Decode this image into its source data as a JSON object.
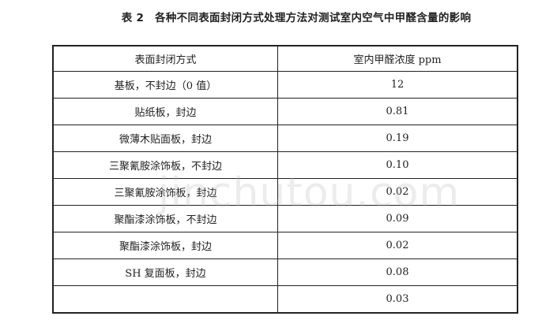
{
  "title": "表 2　各种不同表面封闭方式处理方法对测试室内空气中甲醛含量的影响",
  "table": {
    "headers": [
      "表面封闭方式",
      "室内甲醛浓度 ppm"
    ],
    "rows": [
      [
        "基板，不封边（0 值）",
        "12"
      ],
      [
        "贴纸板，封边",
        "0.81"
      ],
      [
        "微薄木贴面板，封边",
        "0.19"
      ],
      [
        "三聚氰胺涂饰板，不封边",
        "0.10"
      ],
      [
        "三聚氰胺涂饰板，封边",
        "0.02"
      ],
      [
        "聚酯漆涂饰板，不封边",
        "0.09"
      ],
      [
        "聚酯漆涂饰板，封边",
        "0.02"
      ],
      [
        "SH 复面板，封边",
        "0.08"
      ],
      [
        "",
        "0.03"
      ]
    ]
  },
  "watermark": "jinchutou.com"
}
